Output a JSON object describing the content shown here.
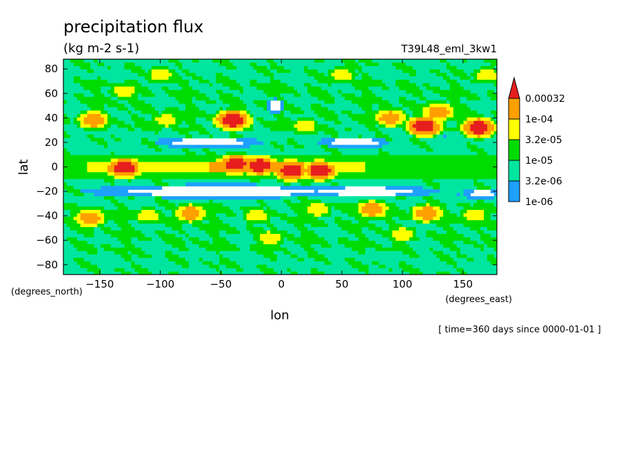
{
  "chart_data": {
    "type": "heatmap",
    "title": "precipitation flux",
    "units": "(kg m-2 s-1)",
    "run_label": "T39L48_eml_3kw1",
    "xlabel": "lon",
    "ylabel": "lat",
    "x_units_note": "(degrees_east)",
    "y_units_note": "(degrees_north)",
    "time_note": "[ time=360 days since 0000-01-01 ]",
    "xlim": [
      -180,
      178
    ],
    "ylim": [
      -88,
      88
    ],
    "x_ticks": [
      -150,
      -100,
      -50,
      0,
      50,
      100,
      150
    ],
    "y_ticks": [
      -80,
      -60,
      -40,
      -20,
      0,
      20,
      40,
      60,
      80
    ],
    "x_tick_labels": [
      "−150",
      "−100",
      "−50",
      "0",
      "50",
      "100",
      "150"
    ],
    "y_tick_labels": [
      "−80",
      "−60",
      "−40",
      "−20",
      "0",
      "20",
      "40",
      "60",
      "80"
    ],
    "colorbar": {
      "levels": [
        "1e-06",
        "3.2e-06",
        "1e-05",
        "3.2e-05",
        "1e-04",
        "0.00032"
      ],
      "colors": [
        "#ffffff",
        "#1ea0ff",
        "#00e6a0",
        "#00dc00",
        "#ffff00",
        "#ffa000",
        "#e61e1e"
      ]
    },
    "features": {
      "rain_bands": [
        {
          "lat": 0,
          "halfwidth": 10,
          "lon_from": -180,
          "lon_to": 178,
          "level": 3
        },
        {
          "lat": 0,
          "halfwidth": 5,
          "lon_from": -160,
          "lon_to": 70,
          "level": 4
        },
        {
          "lat": 0,
          "halfwidth": 4,
          "lon_from": -60,
          "lon_to": 20,
          "level": 5
        }
      ],
      "dry_zones": [
        {
          "lon": -50,
          "lat": -20,
          "rx": 115,
          "ry": 6
        },
        {
          "lon": 70,
          "lat": -20,
          "rx": 60,
          "ry": 5
        },
        {
          "lon": 165,
          "lat": -22,
          "rx": 15,
          "ry": 5
        },
        {
          "lon": -60,
          "lat": 20,
          "rx": 45,
          "ry": 5
        },
        {
          "lon": 60,
          "lat": 20,
          "rx": 30,
          "ry": 5
        },
        {
          "lon": -5,
          "lat": 50,
          "rx": 8,
          "ry": 6
        }
      ],
      "hotspots": [
        {
          "lon": -38,
          "lat": 2,
          "level": 6
        },
        {
          "lon": -130,
          "lat": -1,
          "level": 6
        },
        {
          "lon": -18,
          "lat": 1,
          "level": 6
        },
        {
          "lon": 8,
          "lat": -3,
          "level": 6
        },
        {
          "lon": 32,
          "lat": -3,
          "level": 6
        },
        {
          "lon": -40,
          "lat": 38,
          "level": 6
        },
        {
          "lon": 118,
          "lat": 33,
          "level": 6
        },
        {
          "lon": 163,
          "lat": 32,
          "level": 6
        },
        {
          "lon": -158,
          "lat": -42,
          "level": 5
        },
        {
          "lon": -155,
          "lat": 38,
          "level": 5
        },
        {
          "lon": 90,
          "lat": 40,
          "level": 5
        },
        {
          "lon": 130,
          "lat": 45,
          "level": 5
        },
        {
          "lon": -75,
          "lat": -38,
          "level": 5
        },
        {
          "lon": 75,
          "lat": -35,
          "level": 5
        },
        {
          "lon": 120,
          "lat": -38,
          "level": 5
        },
        {
          "lon": -130,
          "lat": 62,
          "level": 4
        },
        {
          "lon": -95,
          "lat": 38,
          "level": 4
        },
        {
          "lon": 20,
          "lat": 33,
          "level": 4
        },
        {
          "lon": -110,
          "lat": -40,
          "level": 4
        },
        {
          "lon": -20,
          "lat": -40,
          "level": 4
        },
        {
          "lon": 30,
          "lat": -35,
          "level": 4
        },
        {
          "lon": 160,
          "lat": -40,
          "level": 4
        },
        {
          "lon": 50,
          "lat": 75,
          "level": 4
        },
        {
          "lon": -10,
          "lat": -58,
          "level": 4
        },
        {
          "lon": 100,
          "lat": -55,
          "level": 4
        },
        {
          "lon": -100,
          "lat": 75,
          "level": 4
        },
        {
          "lon": 170,
          "lat": 75,
          "level": 4
        }
      ]
    }
  }
}
